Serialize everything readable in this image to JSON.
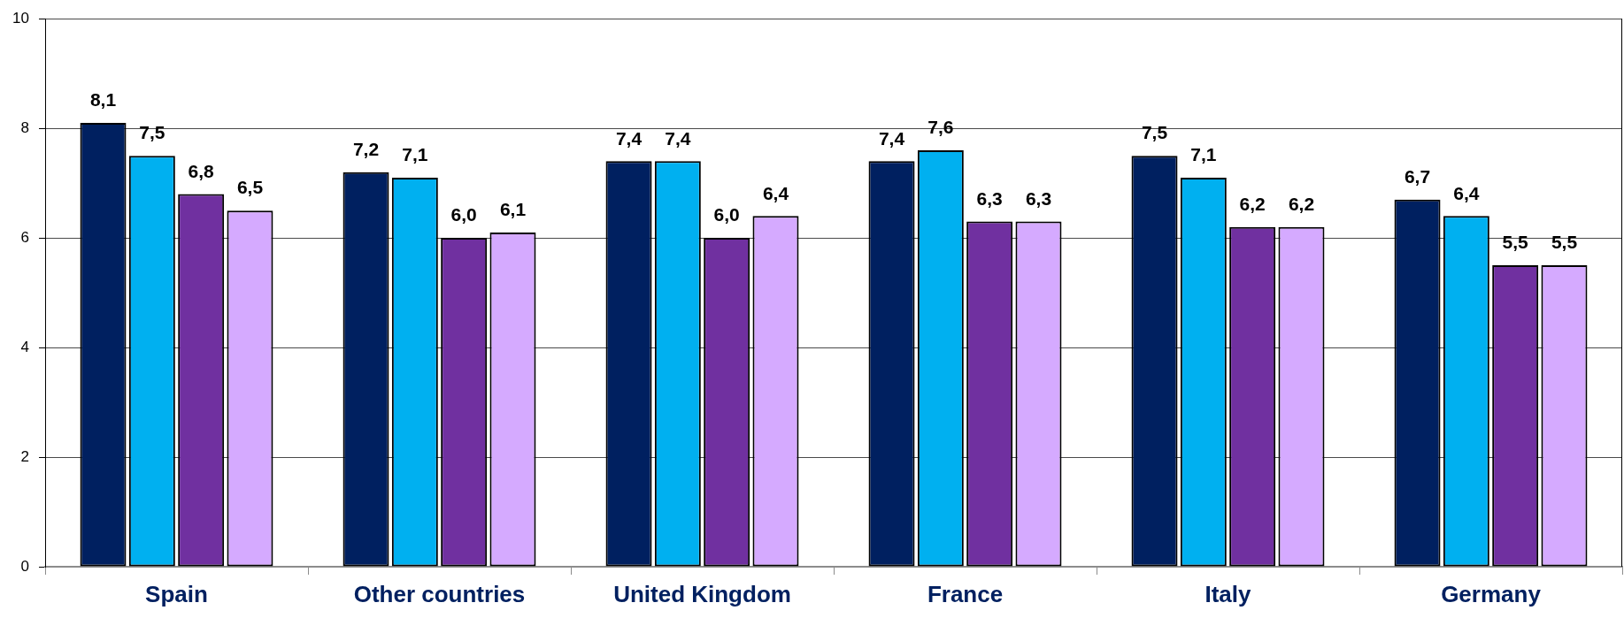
{
  "chart_data": {
    "type": "bar",
    "categories": [
      "Spain",
      "Other countries",
      "United Kingdom",
      "France",
      "Italy",
      "Germany"
    ],
    "series": [
      {
        "color": "#002060",
        "values": [
          8.1,
          7.2,
          7.4,
          7.4,
          7.5,
          6.7
        ],
        "value_labels": [
          "8,1",
          "7,2",
          "7,4",
          "7,4",
          "7,5",
          "6,7"
        ]
      },
      {
        "color": "#00b0f0",
        "values": [
          7.5,
          7.1,
          7.4,
          7.6,
          7.1,
          6.4
        ],
        "value_labels": [
          "7,5",
          "7,1",
          "7,4",
          "7,6",
          "7,1",
          "6,4"
        ]
      },
      {
        "color": "#7030a0",
        "values": [
          6.8,
          6.0,
          6.0,
          6.3,
          6.2,
          5.5
        ],
        "value_labels": [
          "6,8",
          "6,0",
          "6,0",
          "6,3",
          "6,2",
          "5,5"
        ]
      },
      {
        "color": "#d5aaff",
        "values": [
          6.5,
          6.1,
          6.4,
          6.3,
          6.2,
          5.5
        ],
        "value_labels": [
          "6,5",
          "6,1",
          "6,4",
          "6,3",
          "6,2",
          "5,5"
        ]
      }
    ],
    "ylim": [
      0,
      10
    ],
    "yticks": [
      0,
      2,
      4,
      6,
      8,
      10
    ],
    "grid": "y"
  }
}
